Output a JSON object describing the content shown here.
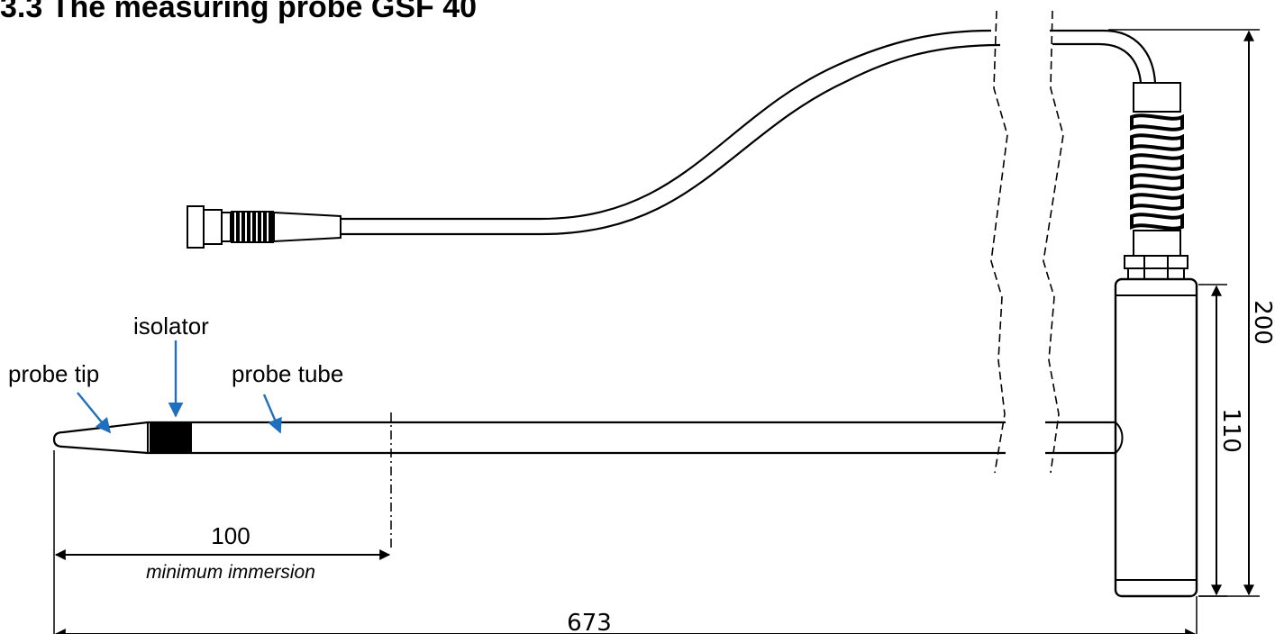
{
  "title": "3.3  The measuring probe GSF 40",
  "labels": {
    "isolator": "isolator",
    "probe_tip": "probe tip",
    "probe_tube": "probe tube",
    "minimum_immersion": "minimum immersion"
  },
  "dimensions": {
    "immersion": "100",
    "total_length": "673",
    "total_height": "200",
    "handle_height": "110"
  },
  "colors": {
    "line": "#000000",
    "callout_arrow": "#1f6fbf",
    "isolator_fill": "#000000"
  }
}
